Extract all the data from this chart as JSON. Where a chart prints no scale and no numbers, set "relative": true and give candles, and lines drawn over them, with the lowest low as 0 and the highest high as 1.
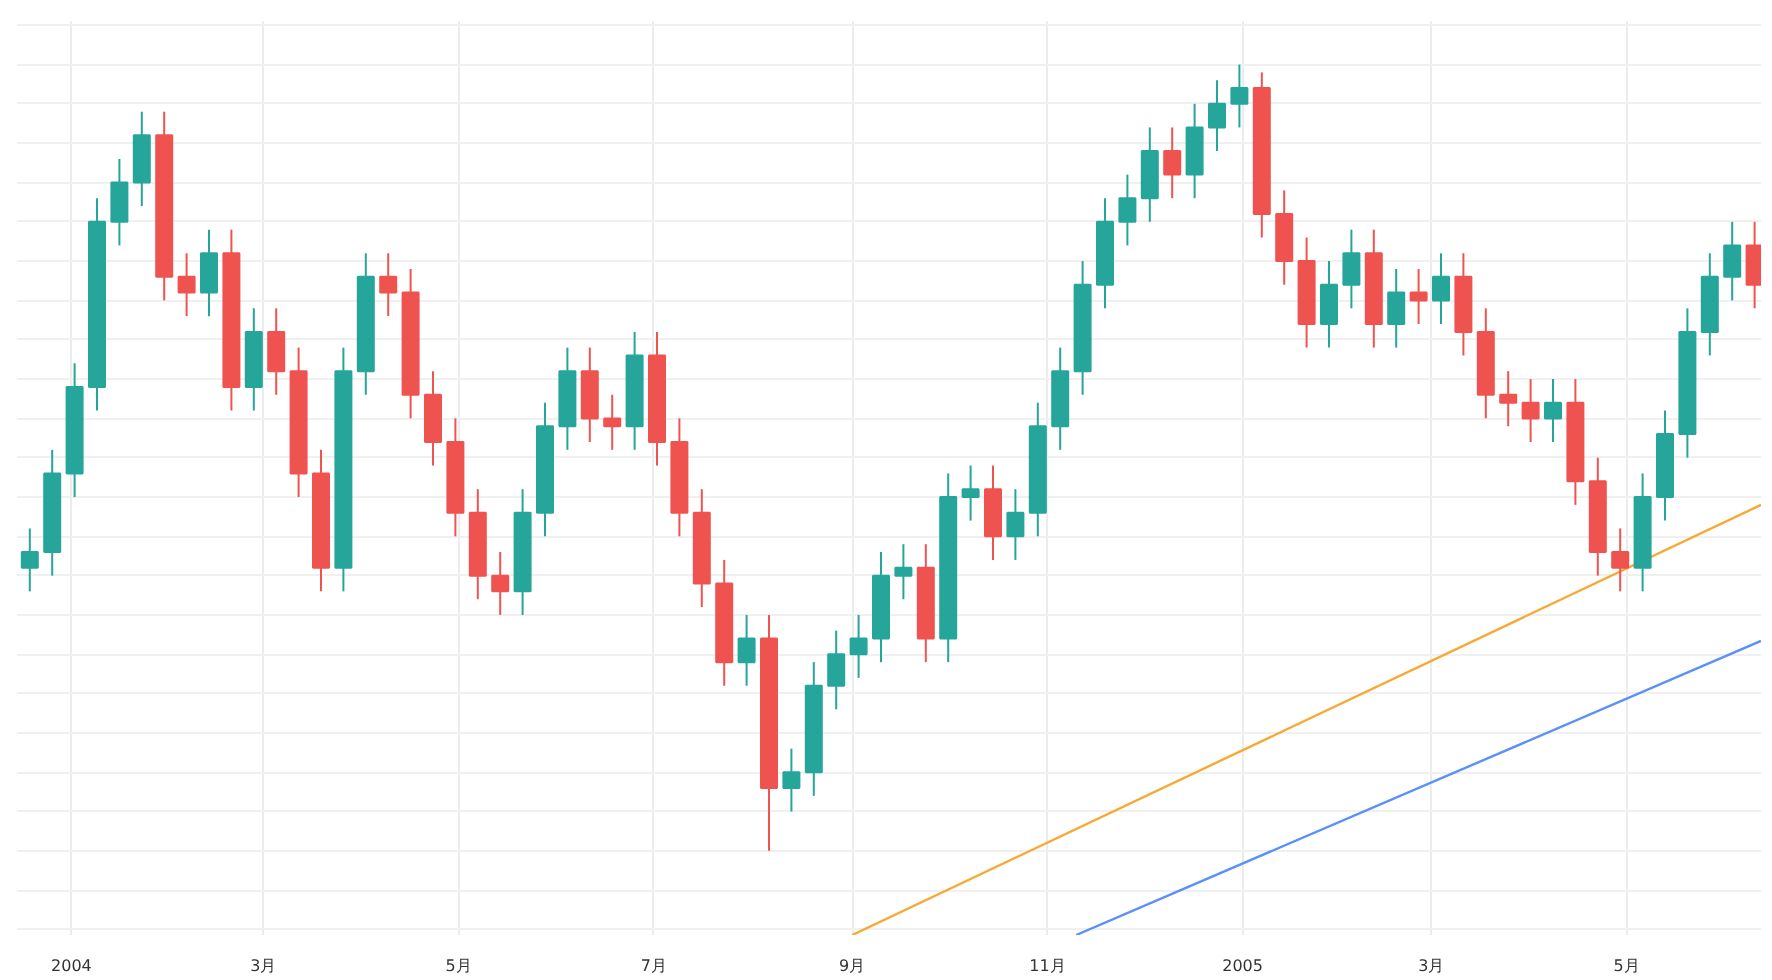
{
  "chart_data": {
    "type": "candlestick",
    "relative": true,
    "grid": true,
    "xlim": [
      "2003-12-15",
      "2005-06-12"
    ],
    "xticks": [
      {
        "value": "2004-01-01",
        "label": "2004"
      },
      {
        "value": "2004-03-01",
        "label": "3月"
      },
      {
        "value": "2004-05-01",
        "label": "5月"
      },
      {
        "value": "2004-07-01",
        "label": "7月"
      },
      {
        "value": "2004-09-01",
        "label": "9月"
      },
      {
        "value": "2004-11-01",
        "label": "11月"
      },
      {
        "value": "2005-01-01",
        "label": "2005"
      },
      {
        "value": "2005-03-01",
        "label": "3月"
      },
      {
        "value": "2005-05-01",
        "label": "5月"
      }
    ],
    "x": [
      "2003-12-19",
      "2003-12-26",
      "2004-01-02",
      "2004-01-09",
      "2004-01-16",
      "2004-01-23",
      "2004-01-30",
      "2004-02-06",
      "2004-02-13",
      "2004-02-20",
      "2004-02-27",
      "2004-03-05",
      "2004-03-12",
      "2004-03-19",
      "2004-03-26",
      "2004-04-02",
      "2004-04-09",
      "2004-04-16",
      "2004-04-23",
      "2004-04-30",
      "2004-05-07",
      "2004-05-14",
      "2004-05-21",
      "2004-05-28",
      "2004-06-04",
      "2004-06-11",
      "2004-06-18",
      "2004-06-25",
      "2004-07-02",
      "2004-07-09",
      "2004-07-16",
      "2004-07-23",
      "2004-07-30",
      "2004-08-06",
      "2004-08-13",
      "2004-08-20",
      "2004-08-27",
      "2004-09-03",
      "2004-09-10",
      "2004-09-17",
      "2004-09-24",
      "2004-10-01",
      "2004-10-08",
      "2004-10-15",
      "2004-10-22",
      "2004-10-29",
      "2004-11-05",
      "2004-11-12",
      "2004-11-19",
      "2004-11-26",
      "2004-12-03",
      "2004-12-10",
      "2004-12-17",
      "2004-12-24",
      "2004-12-31",
      "2005-01-07",
      "2005-01-14",
      "2005-01-21",
      "2005-01-28",
      "2005-02-04",
      "2005-02-11",
      "2005-02-18",
      "2005-02-25",
      "2005-03-04",
      "2005-03-11",
      "2005-03-18",
      "2005-03-25",
      "2005-04-01",
      "2005-04-08",
      "2005-04-15",
      "2005-04-22",
      "2005-04-29",
      "2005-05-06",
      "2005-05-13",
      "2005-05-20",
      "2005-05-27",
      "2005-06-03",
      "2005-06-10"
    ],
    "ohlc": [
      [
        0.36,
        0.41,
        0.33,
        0.38
      ],
      [
        0.38,
        0.51,
        0.35,
        0.48
      ],
      [
        0.48,
        0.62,
        0.45,
        0.59
      ],
      [
        0.59,
        0.83,
        0.56,
        0.8
      ],
      [
        0.8,
        0.88,
        0.77,
        0.85
      ],
      [
        0.85,
        0.94,
        0.82,
        0.91
      ],
      [
        0.91,
        0.94,
        0.7,
        0.73
      ],
      [
        0.73,
        0.76,
        0.68,
        0.71
      ],
      [
        0.71,
        0.79,
        0.68,
        0.76
      ],
      [
        0.76,
        0.79,
        0.56,
        0.59
      ],
      [
        0.59,
        0.69,
        0.56,
        0.66
      ],
      [
        0.66,
        0.69,
        0.58,
        0.61
      ],
      [
        0.61,
        0.64,
        0.45,
        0.48
      ],
      [
        0.48,
        0.51,
        0.33,
        0.36
      ],
      [
        0.36,
        0.64,
        0.33,
        0.61
      ],
      [
        0.61,
        0.76,
        0.58,
        0.73
      ],
      [
        0.73,
        0.76,
        0.68,
        0.71
      ],
      [
        0.71,
        0.74,
        0.55,
        0.58
      ],
      [
        0.58,
        0.61,
        0.49,
        0.52
      ],
      [
        0.52,
        0.55,
        0.4,
        0.43
      ],
      [
        0.43,
        0.46,
        0.32,
        0.35
      ],
      [
        0.35,
        0.38,
        0.3,
        0.33
      ],
      [
        0.33,
        0.46,
        0.3,
        0.43
      ],
      [
        0.43,
        0.57,
        0.4,
        0.54
      ],
      [
        0.54,
        0.64,
        0.51,
        0.61
      ],
      [
        0.61,
        0.64,
        0.52,
        0.55
      ],
      [
        0.55,
        0.58,
        0.51,
        0.54
      ],
      [
        0.54,
        0.66,
        0.51,
        0.63
      ],
      [
        0.63,
        0.66,
        0.49,
        0.52
      ],
      [
        0.52,
        0.55,
        0.4,
        0.43
      ],
      [
        0.43,
        0.46,
        0.31,
        0.34
      ],
      [
        0.34,
        0.37,
        0.21,
        0.24
      ],
      [
        0.24,
        0.3,
        0.21,
        0.27
      ],
      [
        0.27,
        0.3,
        0.0,
        0.08
      ],
      [
        0.08,
        0.13,
        0.05,
        0.1
      ],
      [
        0.1,
        0.24,
        0.07,
        0.21
      ],
      [
        0.21,
        0.28,
        0.18,
        0.25
      ],
      [
        0.25,
        0.3,
        0.22,
        0.27
      ],
      [
        0.27,
        0.38,
        0.24,
        0.35
      ],
      [
        0.35,
        0.39,
        0.32,
        0.36
      ],
      [
        0.36,
        0.39,
        0.24,
        0.27
      ],
      [
        0.27,
        0.48,
        0.24,
        0.45
      ],
      [
        0.45,
        0.49,
        0.42,
        0.46
      ],
      [
        0.46,
        0.49,
        0.37,
        0.4
      ],
      [
        0.4,
        0.46,
        0.37,
        0.43
      ],
      [
        0.43,
        0.57,
        0.4,
        0.54
      ],
      [
        0.54,
        0.64,
        0.51,
        0.61
      ],
      [
        0.61,
        0.75,
        0.58,
        0.72
      ],
      [
        0.72,
        0.83,
        0.69,
        0.8
      ],
      [
        0.8,
        0.86,
        0.77,
        0.83
      ],
      [
        0.83,
        0.92,
        0.8,
        0.89
      ],
      [
        0.89,
        0.92,
        0.83,
        0.86
      ],
      [
        0.86,
        0.95,
        0.83,
        0.92
      ],
      [
        0.92,
        0.98,
        0.89,
        0.95
      ],
      [
        0.95,
        1.0,
        0.92,
        0.97
      ],
      [
        0.97,
        0.99,
        0.78,
        0.81
      ],
      [
        0.81,
        0.84,
        0.72,
        0.75
      ],
      [
        0.75,
        0.78,
        0.64,
        0.67
      ],
      [
        0.67,
        0.75,
        0.64,
        0.72
      ],
      [
        0.72,
        0.79,
        0.69,
        0.76
      ],
      [
        0.76,
        0.79,
        0.64,
        0.67
      ],
      [
        0.67,
        0.74,
        0.64,
        0.71
      ],
      [
        0.71,
        0.74,
        0.67,
        0.7
      ],
      [
        0.7,
        0.76,
        0.67,
        0.73
      ],
      [
        0.73,
        0.76,
        0.63,
        0.66
      ],
      [
        0.66,
        0.69,
        0.55,
        0.58
      ],
      [
        0.58,
        0.61,
        0.54,
        0.57
      ],
      [
        0.57,
        0.6,
        0.52,
        0.55
      ],
      [
        0.55,
        0.6,
        0.52,
        0.57
      ],
      [
        0.57,
        0.6,
        0.44,
        0.47
      ],
      [
        0.47,
        0.5,
        0.35,
        0.38
      ],
      [
        0.38,
        0.41,
        0.33,
        0.36
      ],
      [
        0.36,
        0.48,
        0.33,
        0.45
      ],
      [
        0.45,
        0.56,
        0.42,
        0.53
      ],
      [
        0.53,
        0.69,
        0.5,
        0.66
      ],
      [
        0.66,
        0.76,
        0.63,
        0.73
      ],
      [
        0.73,
        0.8,
        0.7,
        0.77
      ],
      [
        0.77,
        0.8,
        0.69,
        0.72
      ]
    ],
    "colors": [
      "#26a69a",
      "#26a69a",
      "#26a69a",
      "#26a69a",
      "#26a69a",
      "#26a69a",
      "#ef5350",
      "#ef5350",
      "#26a69a",
      "#ef5350",
      "#26a69a",
      "#ef5350",
      "#ef5350",
      "#ef5350",
      "#26a69a",
      "#26a69a",
      "#ef5350",
      "#ef5350",
      "#ef5350",
      "#ef5350",
      "#ef5350",
      "#ef5350",
      "#26a69a",
      "#26a69a",
      "#26a69a",
      "#ef5350",
      "#ef5350",
      "#26a69a",
      "#ef5350",
      "#ef5350",
      "#ef5350",
      "#ef5350",
      "#26a69a",
      "#ef5350",
      "#26a69a",
      "#26a69a",
      "#26a69a",
      "#26a69a",
      "#26a69a",
      "#26a69a",
      "#ef5350",
      "#26a69a",
      "#26a69a",
      "#ef5350",
      "#26a69a",
      "#26a69a",
      "#26a69a",
      "#26a69a",
      "#26a69a",
      "#26a69a",
      "#26a69a",
      "#ef5350",
      "#26a69a",
      "#26a69a",
      "#26a69a",
      "#ef5350",
      "#ef5350",
      "#ef5350",
      "#26a69a",
      "#26a69a",
      "#ef5350",
      "#26a69a",
      "#ef5350",
      "#26a69a",
      "#ef5350",
      "#ef5350",
      "#ef5350",
      "#ef5350",
      "#26a69a",
      "#ef5350",
      "#ef5350",
      "#ef5350",
      "#26a69a",
      "#26a69a",
      "#26a69a",
      "#26a69a",
      "#26a69a",
      "#ef5350"
    ],
    "series": [
      {
        "type": "line",
        "color": "#f7a934",
        "x": [
          "2004-09-01",
          "2005-06-12"
        ],
        "values": [
          -0.107,
          0.44
        ]
      },
      {
        "type": "line",
        "color": "#5b8ff9",
        "x": [
          "2004-11-10",
          "2005-06-12"
        ],
        "values": [
          -0.107,
          0.267
        ]
      }
    ]
  }
}
